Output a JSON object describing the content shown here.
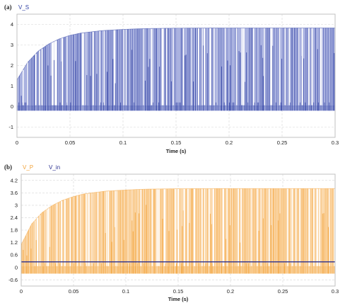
{
  "chart_data": [
    {
      "panel_label": "(a)",
      "type": "area",
      "xlabel": "Time (s)",
      "ylabel": "",
      "xlim": [
        0,
        0.3
      ],
      "ylim": [
        -1.5,
        4.5
      ],
      "x_ticks": [
        0,
        0.05,
        0.1,
        0.15,
        0.2,
        0.25,
        0.3
      ],
      "x_tick_labels": [
        "0",
        "0.05",
        "0.1",
        "0.15",
        "0.2",
        "0.25",
        "0.3"
      ],
      "y_ticks": [
        -1,
        0,
        1,
        2,
        3,
        4
      ],
      "y_tick_labels": [
        "-1",
        "0",
        "1",
        "2",
        "3",
        "4"
      ],
      "grid": true,
      "legend_position": "top-left",
      "series": [
        {
          "name": "V_S",
          "color": "#2e3fa3",
          "fill_color": "#aab2e0",
          "kind": "switching-envelope",
          "envelope": {
            "x": [
              0,
              0.01,
              0.02,
              0.03,
              0.04,
              0.05,
              0.06,
              0.08,
              0.1,
              0.12,
              0.15,
              0.2,
              0.25,
              0.3
            ],
            "y": [
              1.3,
              2.15,
              2.7,
              3.05,
              3.3,
              3.47,
              3.58,
              3.7,
              3.76,
              3.8,
              3.82,
              3.83,
              3.83,
              3.83
            ]
          },
          "low_level": 0,
          "low_band": [
            -0.2,
            0.05
          ]
        }
      ]
    },
    {
      "panel_label": "(b)",
      "type": "area",
      "xlabel": "Time (s)",
      "ylabel": "",
      "xlim": [
        0,
        0.3
      ],
      "ylim": [
        -0.9,
        4.5
      ],
      "x_ticks": [
        0,
        0.05,
        0.1,
        0.15,
        0.2,
        0.25,
        0.3
      ],
      "x_tick_labels": [
        "0",
        "0.05",
        "0.1",
        "0.15",
        "0.2",
        "0.25",
        "0.3"
      ],
      "y_ticks": [
        -0.6,
        0,
        0.6,
        1.2,
        1.8,
        2.4,
        3,
        3.6,
        4.2
      ],
      "y_tick_labels": [
        "-0.6",
        "0",
        "0.6",
        "1.2",
        "1.8",
        "2.4",
        "3",
        "3.6",
        "4.2"
      ],
      "grid": true,
      "legend_position": "top-left",
      "series": [
        {
          "name": "V_P",
          "color": "#f3a33a",
          "fill_color": "#fbd9ad",
          "kind": "switching-envelope",
          "envelope": {
            "x": [
              0,
              0.01,
              0.02,
              0.03,
              0.04,
              0.05,
              0.06,
              0.08,
              0.1,
              0.12,
              0.15,
              0.2,
              0.25,
              0.3
            ],
            "y": [
              1.1,
              2.1,
              2.65,
              3.0,
              3.25,
              3.42,
              3.55,
              3.68,
              3.74,
              3.78,
              3.8,
              3.81,
              3.81,
              3.81
            ]
          },
          "low_level": 0,
          "low_band": [
            -0.3,
            0.05
          ]
        },
        {
          "name": "V_in",
          "color": "#2a2f8f",
          "kind": "line",
          "x": [
            0,
            0.3
          ],
          "y": [
            0.27,
            0.27
          ]
        }
      ]
    }
  ]
}
